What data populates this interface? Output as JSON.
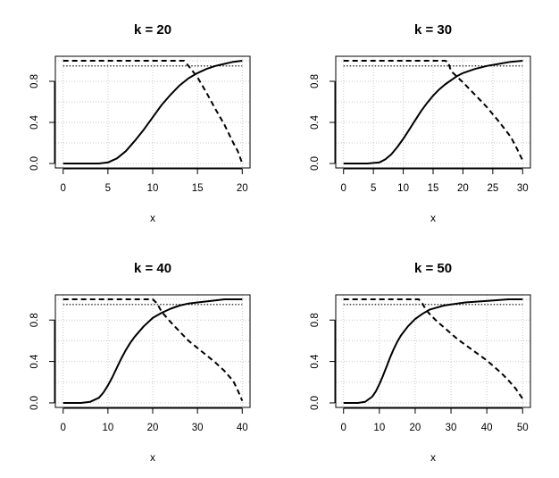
{
  "chart_data": [
    {
      "type": "line",
      "title": "k = 20",
      "xlabel": "x",
      "ylabel": "",
      "xlim": [
        0,
        20
      ],
      "ylim": [
        0,
        1
      ],
      "xticks": [
        "0",
        "5",
        "10",
        "15",
        "20"
      ],
      "yticks": [
        "0.0",
        "0.4",
        "0.8"
      ],
      "grid": true,
      "series": [
        {
          "style": "solid",
          "x": [
            0,
            1,
            2,
            3,
            4,
            5,
            6,
            7,
            8,
            9,
            10,
            11,
            12,
            13,
            14,
            15,
            16,
            17,
            18,
            19,
            20
          ],
          "y": [
            0,
            0,
            0,
            0,
            0,
            0.01,
            0.05,
            0.12,
            0.22,
            0.33,
            0.45,
            0.57,
            0.67,
            0.76,
            0.83,
            0.88,
            0.92,
            0.95,
            0.97,
            0.99,
            1.0
          ]
        },
        {
          "style": "dashed",
          "x": [
            0,
            12,
            13.5,
            14,
            15,
            16,
            17,
            18,
            19,
            19.5,
            20
          ],
          "y": [
            1.0,
            1.0,
            1.0,
            0.95,
            0.84,
            0.69,
            0.53,
            0.38,
            0.2,
            0.12,
            0.0
          ]
        },
        {
          "style": "dotted",
          "x": [
            0,
            20
          ],
          "y": [
            0.95,
            0.95
          ]
        }
      ]
    },
    {
      "type": "line",
      "title": "k = 30",
      "xlabel": "x",
      "ylabel": "",
      "xlim": [
        0,
        30
      ],
      "ylim": [
        0,
        1
      ],
      "xticks": [
        "0",
        "5",
        "10",
        "15",
        "20",
        "25",
        "30"
      ],
      "yticks": [
        "0.0",
        "0.4",
        "0.8"
      ],
      "grid": true,
      "series": [
        {
          "style": "solid",
          "x": [
            0,
            2,
            4,
            6,
            7,
            8,
            9,
            10,
            11,
            12,
            13,
            14,
            15,
            16,
            17,
            18,
            19,
            20,
            22,
            24,
            26,
            28,
            30
          ],
          "y": [
            0,
            0,
            0,
            0.01,
            0.04,
            0.09,
            0.16,
            0.24,
            0.33,
            0.42,
            0.51,
            0.59,
            0.66,
            0.72,
            0.77,
            0.81,
            0.85,
            0.88,
            0.92,
            0.95,
            0.97,
            0.99,
            1.0
          ]
        },
        {
          "style": "dashed",
          "x": [
            0,
            10,
            17,
            17.5,
            18,
            20,
            22,
            24,
            26,
            28,
            29,
            30
          ],
          "y": [
            1.0,
            1.0,
            1.0,
            0.99,
            0.9,
            0.79,
            0.67,
            0.55,
            0.41,
            0.26,
            0.15,
            0.03
          ]
        },
        {
          "style": "dotted",
          "x": [
            0,
            30
          ],
          "y": [
            0.95,
            0.95
          ]
        }
      ]
    },
    {
      "type": "line",
      "title": "k = 40",
      "xlabel": "x",
      "ylabel": "",
      "xlim": [
        0,
        40
      ],
      "ylim": [
        0,
        1
      ],
      "xticks": [
        "0",
        "10",
        "20",
        "30",
        "40"
      ],
      "yticks": [
        "0.0",
        "0.4",
        "0.8"
      ],
      "grid": true,
      "series": [
        {
          "style": "solid",
          "x": [
            0,
            4,
            6,
            8,
            9,
            10,
            11,
            12,
            13,
            14,
            15,
            16,
            18,
            20,
            22,
            24,
            26,
            28,
            30,
            32,
            34,
            36,
            38,
            40
          ],
          "y": [
            0,
            0,
            0.01,
            0.05,
            0.1,
            0.17,
            0.25,
            0.34,
            0.43,
            0.51,
            0.58,
            0.64,
            0.74,
            0.82,
            0.87,
            0.91,
            0.94,
            0.96,
            0.97,
            0.98,
            0.99,
            1.0,
            1.0,
            1.0
          ]
        },
        {
          "style": "dashed",
          "x": [
            0,
            15,
            20,
            21,
            22,
            24,
            26,
            28,
            30,
            32,
            34,
            36,
            38,
            39,
            40
          ],
          "y": [
            1.0,
            1.0,
            1.0,
            0.96,
            0.88,
            0.78,
            0.69,
            0.6,
            0.53,
            0.46,
            0.39,
            0.31,
            0.21,
            0.12,
            0.02
          ]
        },
        {
          "style": "dotted",
          "x": [
            0,
            40
          ],
          "y": [
            0.95,
            0.95
          ]
        }
      ]
    },
    {
      "type": "line",
      "title": "k = 50",
      "xlabel": "x",
      "ylabel": "",
      "xlim": [
        0,
        50
      ],
      "ylim": [
        0,
        1
      ],
      "xticks": [
        "0",
        "10",
        "20",
        "30",
        "40",
        "50"
      ],
      "yticks": [
        "0.0",
        "0.4",
        "0.8"
      ],
      "grid": true,
      "series": [
        {
          "style": "solid",
          "x": [
            0,
            4,
            6,
            8,
            9,
            10,
            11,
            12,
            13,
            14,
            15,
            16,
            18,
            20,
            22,
            24,
            26,
            28,
            30,
            34,
            38,
            42,
            46,
            50
          ],
          "y": [
            0,
            0,
            0.01,
            0.06,
            0.11,
            0.18,
            0.26,
            0.35,
            0.44,
            0.52,
            0.59,
            0.65,
            0.74,
            0.81,
            0.86,
            0.9,
            0.92,
            0.94,
            0.95,
            0.97,
            0.98,
            0.99,
            1.0,
            1.0
          ]
        },
        {
          "style": "dashed",
          "x": [
            0,
            15,
            21,
            22,
            23,
            24,
            26,
            28,
            30,
            32,
            34,
            36,
            38,
            40,
            42,
            44,
            46,
            48,
            50
          ],
          "y": [
            1.0,
            1.0,
            1.0,
            0.96,
            0.9,
            0.86,
            0.79,
            0.73,
            0.67,
            0.61,
            0.56,
            0.51,
            0.46,
            0.41,
            0.35,
            0.29,
            0.22,
            0.14,
            0.04
          ]
        },
        {
          "style": "dotted",
          "x": [
            0,
            50
          ],
          "y": [
            0.95,
            0.95
          ]
        }
      ]
    }
  ]
}
